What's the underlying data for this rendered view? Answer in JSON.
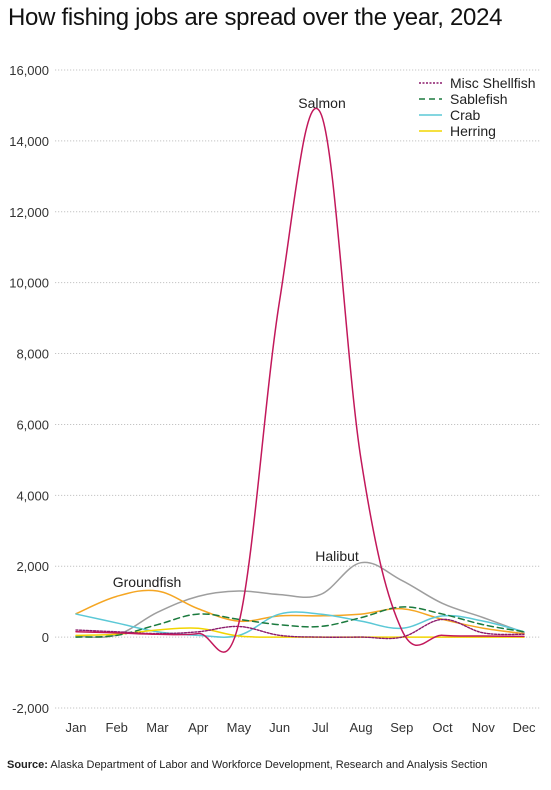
{
  "chart_data": {
    "type": "line",
    "title": "How fishing jobs are spread over the year, 2024",
    "xlabel": "",
    "ylabel": "",
    "categories": [
      "Jan",
      "Feb",
      "Mar",
      "Apr",
      "May",
      "Jun",
      "Jul",
      "Aug",
      "Sep",
      "Oct",
      "Nov",
      "Dec"
    ],
    "ylim": [
      -2000,
      16000
    ],
    "yticks": [
      -2000,
      0,
      2000,
      4000,
      6000,
      8000,
      10000,
      12000,
      14000,
      16000
    ],
    "ytick_labels": [
      "-2,000",
      "0",
      "2,000",
      "4,000",
      "6,000",
      "8,000",
      "10,000",
      "12,000",
      "14,000",
      "16,000"
    ],
    "grid": "horizontal",
    "legend_position": "top-right",
    "series": [
      {
        "name": "Salmon",
        "color": "#c2185b",
        "style": "solid",
        "label_on_chart": "Salmon",
        "in_legend": false,
        "values": [
          150,
          120,
          80,
          100,
          400,
          9500,
          14800,
          5000,
          200,
          50,
          30,
          20
        ]
      },
      {
        "name": "Halibut",
        "color": "#9e9e9e",
        "style": "solid",
        "label_on_chart": "Halibut",
        "in_legend": false,
        "values": [
          20,
          60,
          700,
          1150,
          1300,
          1200,
          1200,
          2100,
          1600,
          950,
          550,
          130
        ]
      },
      {
        "name": "Groundfish",
        "color": "#f5a623",
        "style": "solid",
        "label_on_chart": "Groundfish",
        "in_legend": false,
        "values": [
          660,
          1150,
          1300,
          800,
          450,
          600,
          600,
          650,
          800,
          500,
          250,
          100
        ]
      },
      {
        "name": "Misc Shellfish",
        "color": "#8b1a6b",
        "style": "dotted",
        "in_legend": true,
        "values": [
          200,
          150,
          100,
          150,
          300,
          50,
          0,
          0,
          0,
          500,
          120,
          80
        ]
      },
      {
        "name": "Sablefish",
        "color": "#1b7a3e",
        "style": "dashed",
        "in_legend": true,
        "values": [
          0,
          50,
          350,
          650,
          500,
          350,
          300,
          550,
          850,
          650,
          350,
          150
        ]
      },
      {
        "name": "Crab",
        "color": "#5bc8d6",
        "style": "solid",
        "in_legend": true,
        "values": [
          650,
          400,
          150,
          50,
          50,
          650,
          650,
          450,
          250,
          600,
          450,
          150
        ]
      },
      {
        "name": "Herring",
        "color": "#f2d500",
        "style": "solid",
        "in_legend": true,
        "values": [
          50,
          80,
          200,
          250,
          30,
          0,
          0,
          0,
          0,
          0,
          0,
          0
        ]
      }
    ]
  },
  "source": {
    "label": "Source:",
    "text": "Alaska Department of Labor and Workforce Development, Research and Analysis Section"
  }
}
